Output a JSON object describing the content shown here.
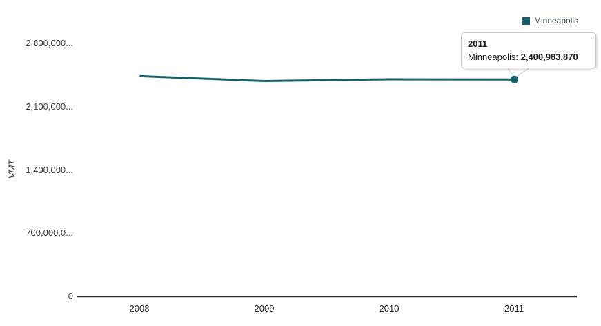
{
  "chart_data": {
    "type": "line",
    "categories": [
      "2008",
      "2009",
      "2010",
      "2011"
    ],
    "series": [
      {
        "name": "Minneapolis",
        "color": "#17616c",
        "values": [
          2438000000,
          2384000000,
          2403000000,
          2400983870
        ]
      }
    ],
    "title": "",
    "xlabel": "",
    "ylabel": "VMT",
    "ylim": [
      0,
      2800000000
    ],
    "y_tick_values": [
      2800000000,
      2100000000,
      1400000000,
      700000000,
      0
    ],
    "y_tick_labels": [
      "2,800,000...",
      "2,100,000...",
      "1,400,000...",
      "700,000,0...",
      "0"
    ],
    "grid": false,
    "legend_position": "top-right",
    "marker_on_last_point": true
  },
  "legend": {
    "items": [
      {
        "label": "Minneapolis",
        "color": "#17616c"
      }
    ]
  },
  "tooltip": {
    "title": "2011",
    "series_label": "Minneapolis: ",
    "value": "2,400,983,870"
  },
  "colors": {
    "series": "#17616c",
    "axis_line": "#2f2f2f",
    "tooltip_border": "#c9c9c9",
    "tick_text": "#3d3d3d"
  }
}
